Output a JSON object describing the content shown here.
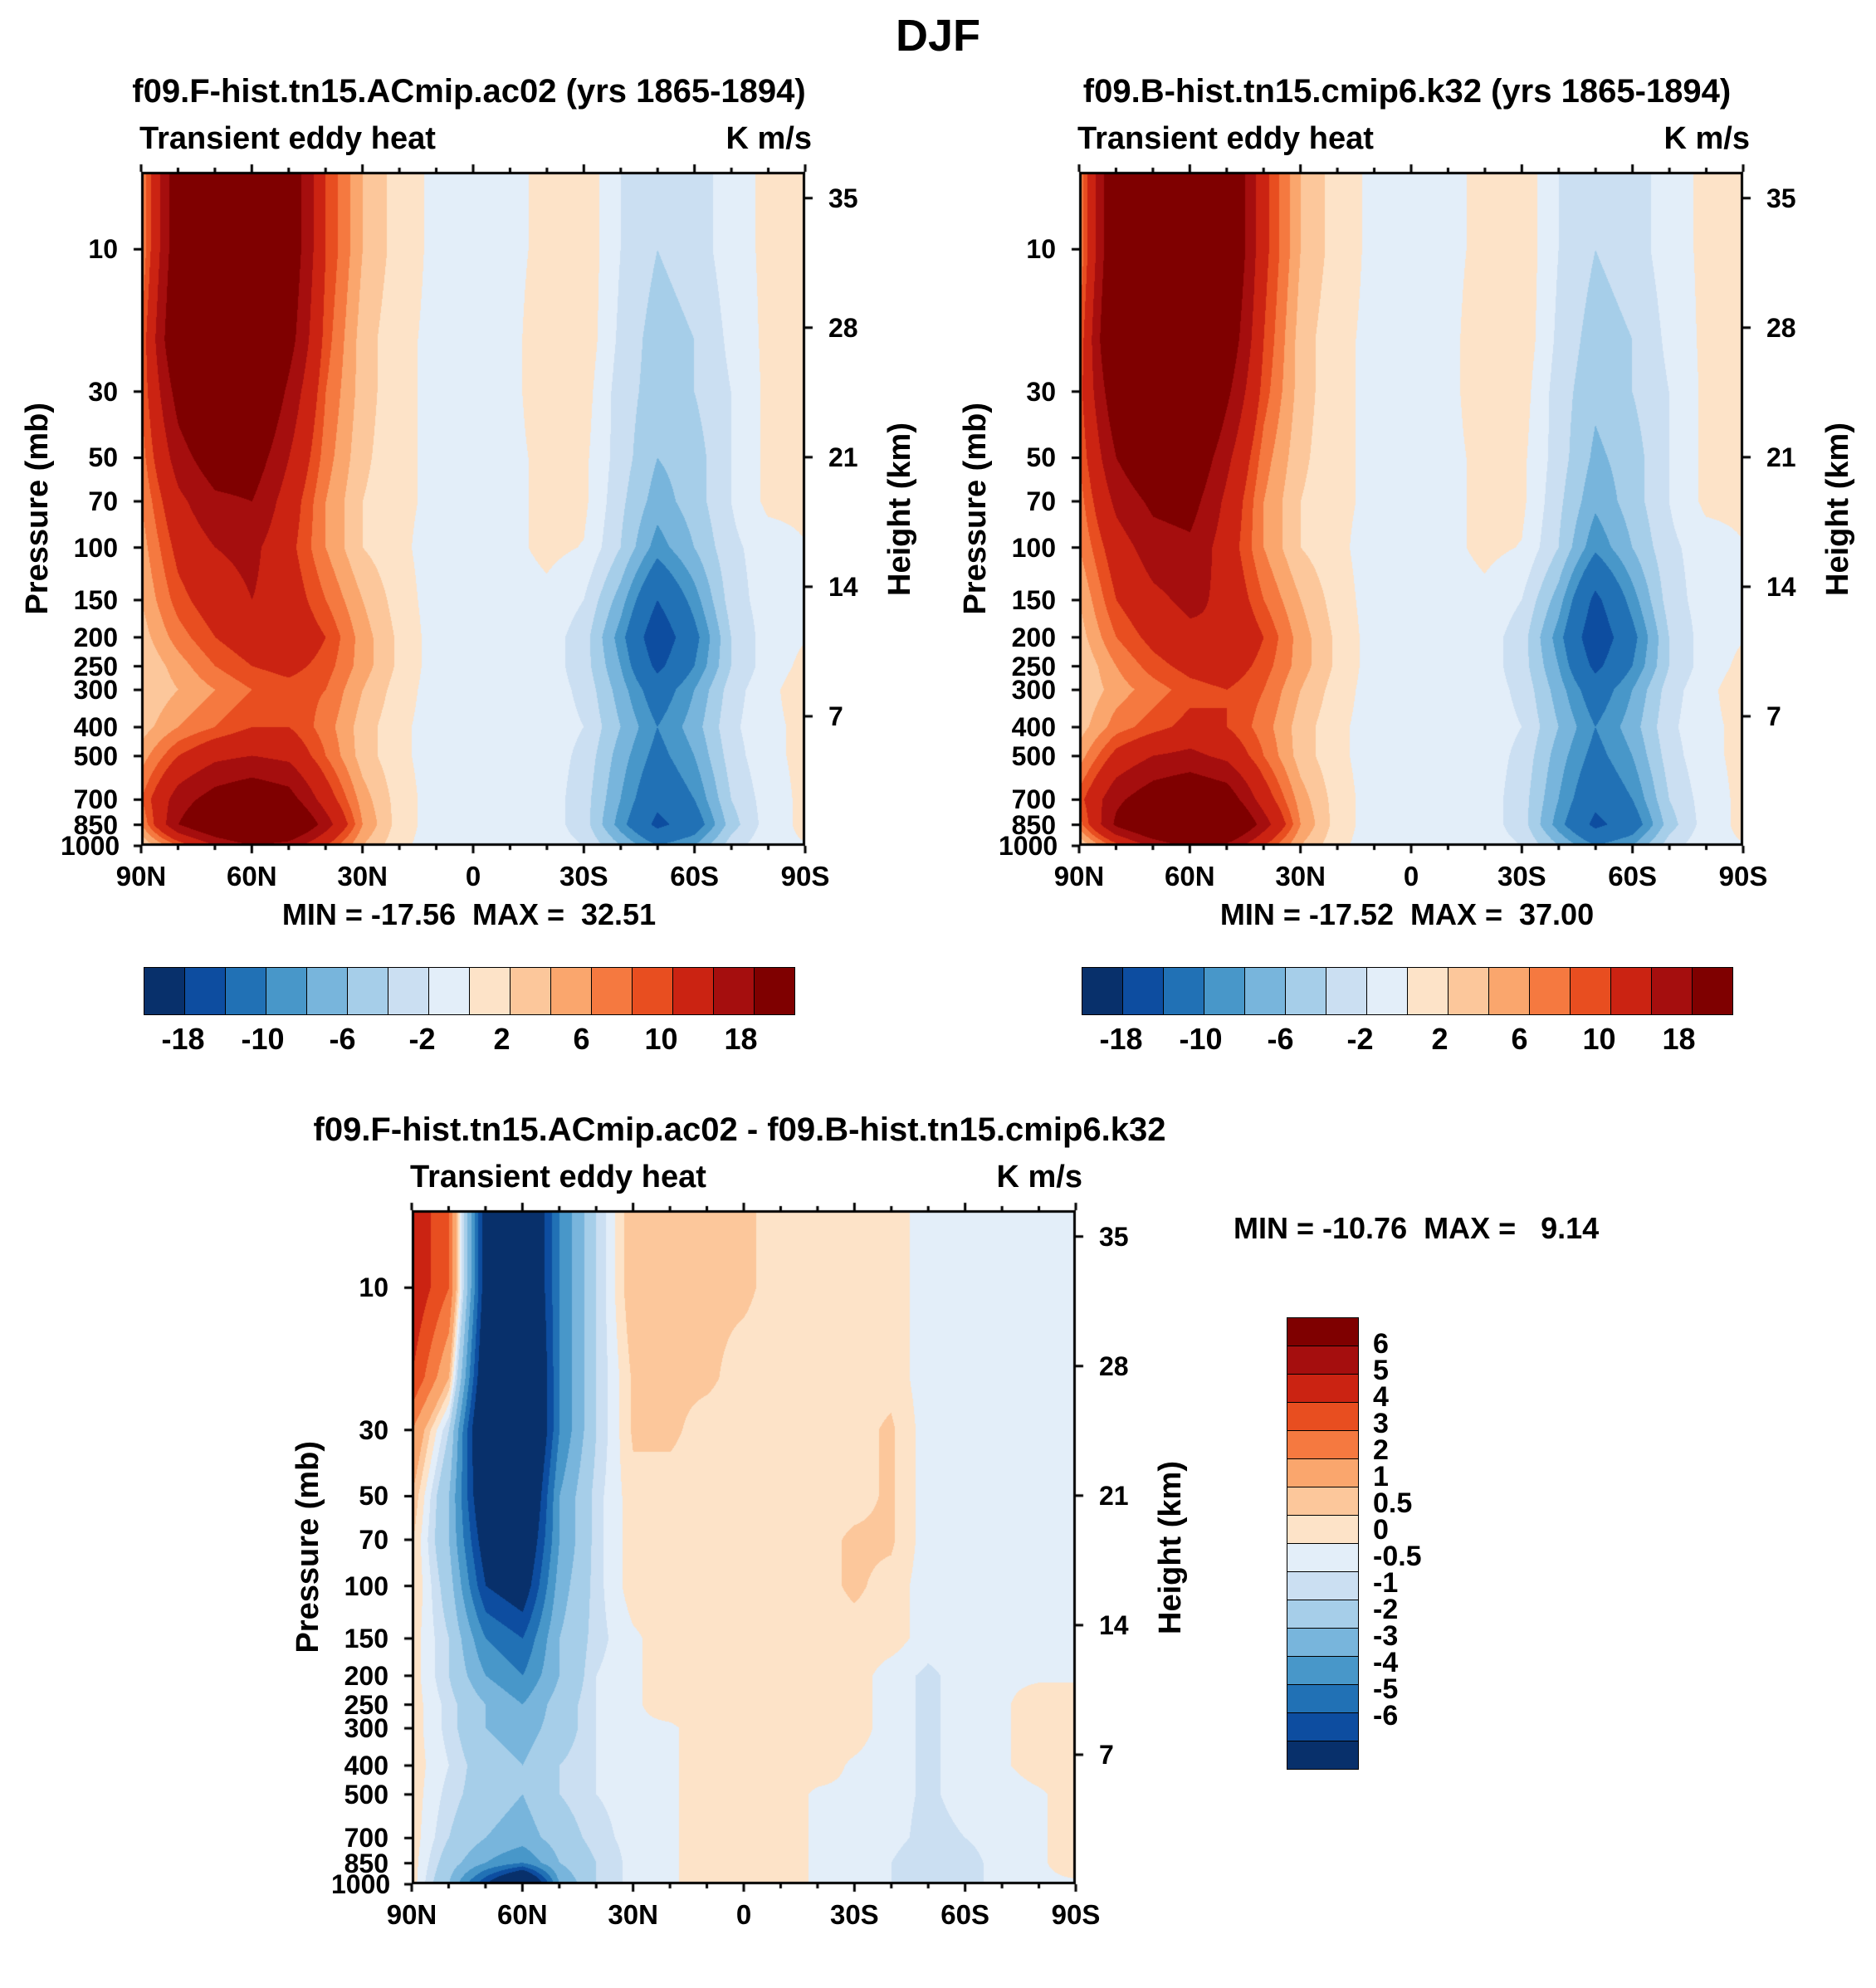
{
  "page": {
    "title": "DJF"
  },
  "axes": {
    "pressure_label": "Pressure (mb)",
    "height_label": "Height (km)",
    "pressure_ticks": [
      10,
      30,
      50,
      70,
      100,
      150,
      200,
      250,
      300,
      400,
      500,
      700,
      850,
      1000
    ],
    "height_ticks": [
      35,
      28,
      21,
      14,
      7
    ],
    "lat_tick_labels": [
      "90N",
      "60N",
      "30N",
      "0",
      "30S",
      "60S",
      "90S"
    ],
    "lat_tick_values": [
      90,
      60,
      30,
      0,
      -30,
      -60,
      -90
    ],
    "p_top": 5.5,
    "p_bottom": 1000
  },
  "palette": [
    "#08306b",
    "#0d4da0",
    "#2171b5",
    "#4897c9",
    "#78b5dc",
    "#a6cee9",
    "#cbdff2",
    "#e3eef9",
    "#fde3c8",
    "#fcc79b",
    "#faa66d",
    "#f57940",
    "#e84e20",
    "#cb2312",
    "#a50e0e",
    "#7f0000"
  ],
  "colorbar_main": {
    "labels": [
      "-18",
      "-10",
      "-6",
      "-2",
      "2",
      "6",
      "10",
      "18"
    ],
    "positions": [
      1,
      3,
      5,
      7,
      9,
      11,
      13,
      15
    ]
  },
  "colorbar_diff": {
    "labels": [
      "6",
      "5",
      "4",
      "3",
      "2",
      "1",
      "0.5",
      "0",
      "-0.5",
      "-1",
      "-2",
      "-3",
      "-4",
      "-5",
      "-6"
    ]
  },
  "chart_data": [
    {
      "type": "heatmap",
      "title": "f09.F-hist.tn15.ACmip.ac02 (yrs 1865-1894)",
      "field": "Transient eddy heat",
      "units": "K m/s",
      "min": -17.56,
      "max": 32.51,
      "minmax_label": "MIN = -17.56  MAX =  32.51",
      "levels": [
        -18,
        -14,
        -10,
        -8,
        -6,
        -4,
        -2,
        0,
        2,
        4,
        6,
        8,
        10,
        14,
        18
      ],
      "lats": [
        90,
        80,
        70,
        60,
        50,
        40,
        30,
        20,
        10,
        0,
        -10,
        -20,
        -30,
        -40,
        -50,
        -60,
        -70,
        -80,
        -90
      ],
      "pressures": [
        10,
        20,
        30,
        50,
        70,
        100,
        150,
        200,
        250,
        300,
        400,
        500,
        700,
        850,
        1000
      ],
      "values": [
        [
          6,
          22,
          30,
          32,
          22,
          10,
          4,
          1,
          -0.5,
          -1,
          -0.5,
          0.5,
          1.5,
          -2,
          -4,
          -3,
          -1,
          0.5,
          0.5
        ],
        [
          8,
          24,
          31,
          30,
          20,
          9,
          3,
          0.5,
          -0.5,
          -1,
          -0.5,
          1,
          1.5,
          -2.5,
          -5,
          -4,
          -1.5,
          0.5,
          0.5
        ],
        [
          8,
          20,
          26,
          26,
          17,
          8,
          3,
          0.5,
          -0.5,
          -1,
          -0.5,
          1,
          1,
          -3,
          -5,
          -4,
          -2,
          0.5,
          0.5
        ],
        [
          7,
          16,
          21,
          21,
          14,
          7,
          2.5,
          0.5,
          -0.5,
          -1,
          -0.5,
          0.5,
          0.5,
          -3,
          -6,
          -5,
          -2,
          0.5,
          0.5
        ],
        [
          6,
          13,
          17,
          18,
          12,
          6,
          2,
          0.5,
          -0.5,
          -1,
          -0.5,
          0.5,
          0.5,
          -3.5,
          -7,
          -5,
          -2,
          0.5,
          0.5
        ],
        [
          5,
          11,
          14,
          15,
          11,
          6,
          2,
          0.5,
          -1,
          -1,
          -0.5,
          0.5,
          -0.1,
          -4,
          -9,
          -6,
          -2.5,
          -1,
          -0.1
        ],
        [
          4,
          9,
          12,
          14,
          12,
          8,
          4,
          1,
          -1,
          -1,
          -1,
          -0.5,
          -2,
          -7,
          -14,
          -9,
          -3,
          -1,
          -0.1
        ],
        [
          3,
          7,
          10,
          12,
          13,
          10,
          5,
          1.5,
          -1,
          -1,
          -1,
          -1,
          -3,
          -9,
          -17,
          -11,
          -4,
          -1,
          -0.1
        ],
        [
          2,
          5,
          8,
          10,
          11,
          9,
          5,
          1.5,
          -1,
          -1,
          -1,
          -1,
          -3,
          -8,
          -15,
          -10,
          -4,
          -1,
          0.5
        ],
        [
          2,
          4,
          6,
          8,
          9,
          8,
          4,
          1,
          -1,
          -1,
          -1,
          -1,
          -2.5,
          -7,
          -12,
          -8,
          -3,
          -0.5,
          1
        ],
        [
          3,
          6,
          8,
          10,
          10,
          7,
          3,
          0.5,
          -1,
          -1,
          -1,
          -1,
          -2,
          -6,
          -10,
          -7,
          -2.5,
          -0.5,
          0.5
        ],
        [
          5,
          10,
          13,
          14,
          13,
          8,
          3,
          0.5,
          -1,
          -1.5,
          -1,
          -1,
          -2.5,
          -7,
          -11,
          -8,
          -3,
          -0.5,
          0.5
        ],
        [
          8,
          16,
          20,
          22,
          20,
          12,
          5,
          1,
          -1,
          -1.5,
          -1,
          -1,
          -3,
          -8,
          -13,
          -10,
          -4,
          -1,
          0.5
        ],
        [
          6,
          18,
          24,
          28,
          26,
          16,
          6,
          1,
          -1,
          -1.5,
          -1,
          -1,
          -3,
          -9,
          -15,
          -12,
          -5,
          -1,
          0.5
        ],
        [
          2,
          8,
          14,
          18,
          16,
          10,
          4,
          0.5,
          -1,
          -1,
          -1,
          -1,
          -2,
          -6,
          -10,
          -8,
          -3,
          -0.5,
          -0.1
        ]
      ]
    },
    {
      "type": "heatmap",
      "title": "f09.B-hist.tn15.cmip6.k32 (yrs 1865-1894)",
      "field": "Transient eddy heat",
      "units": "K m/s",
      "min": -17.52,
      "max": 37.0,
      "minmax_label": "MIN = -17.52  MAX =  37.00",
      "levels": [
        -18,
        -14,
        -10,
        -8,
        -6,
        -4,
        -2,
        0,
        2,
        4,
        6,
        8,
        10,
        14,
        18
      ],
      "lats": [
        90,
        80,
        70,
        60,
        50,
        40,
        30,
        20,
        10,
        0,
        -10,
        -20,
        -30,
        -40,
        -50,
        -60,
        -70,
        -80,
        -90
      ],
      "pressures": [
        10,
        20,
        30,
        50,
        70,
        100,
        150,
        200,
        250,
        300,
        400,
        500,
        700,
        850,
        1000
      ],
      "values": [
        [
          6,
          24,
          33,
          36,
          25,
          11,
          4,
          1,
          -0.5,
          -1,
          -0.5,
          0.5,
          1.5,
          -2,
          -4,
          -3,
          -1,
          0.5,
          0.5
        ],
        [
          8,
          26,
          35,
          34,
          22,
          10,
          3,
          0.5,
          -0.5,
          -1,
          -0.5,
          1,
          1.5,
          -2.5,
          -5,
          -4,
          -1.5,
          0.5,
          0.5
        ],
        [
          9,
          22,
          29,
          29,
          19,
          9,
          3,
          0.5,
          -0.5,
          -1,
          -0.5,
          1,
          1,
          -3,
          -5.5,
          -4,
          -2,
          0.5,
          0.5
        ],
        [
          8,
          18,
          23,
          23,
          15,
          7,
          2.5,
          0.5,
          -0.5,
          -1,
          -0.5,
          0.5,
          0.5,
          -3,
          -6.5,
          -5,
          -2,
          0.5,
          0.5
        ],
        [
          7,
          15,
          19,
          20,
          13,
          6,
          2,
          0.5,
          -0.5,
          -1,
          -0.5,
          0.5,
          0.5,
          -3.5,
          -7.5,
          -5,
          -2,
          0.5,
          0.5
        ],
        [
          6,
          12,
          16,
          17,
          12,
          6,
          2,
          0.5,
          -1,
          -1,
          -0.5,
          0.5,
          -0.1,
          -4,
          -9.5,
          -6,
          -2.5,
          -1,
          -0.1
        ],
        [
          4,
          10,
          13,
          15,
          13,
          8,
          4,
          1,
          -1,
          -1,
          -1,
          -0.5,
          -2,
          -7,
          -15,
          -9,
          -3,
          -1,
          -0.1
        ],
        [
          3,
          8,
          11,
          13,
          14,
          10,
          5,
          1.5,
          -1,
          -1,
          -1,
          -1,
          -3,
          -9,
          -17,
          -11,
          -4,
          -1,
          -0.1
        ],
        [
          2,
          6,
          9,
          11,
          12,
          9,
          5,
          1.5,
          -1,
          -1,
          -1,
          -1,
          -3,
          -8,
          -15,
          -10,
          -4,
          -1,
          0.5
        ],
        [
          2,
          5,
          7,
          9,
          10,
          8,
          4,
          1,
          -1,
          -1,
          -1,
          -1,
          -2.5,
          -7,
          -12,
          -8,
          -3,
          -0.5,
          1
        ],
        [
          3,
          7,
          9,
          11,
          10,
          7,
          3,
          0.5,
          -1,
          -1,
          -1,
          -1,
          -2,
          -6,
          -10,
          -7,
          -2.5,
          -0.5,
          0.5
        ],
        [
          5,
          11,
          14,
          15,
          13,
          8,
          3,
          0.5,
          -1,
          -1.5,
          -1,
          -1,
          -2.5,
          -7,
          -11,
          -8,
          -3,
          -0.5,
          0.5
        ],
        [
          9,
          17,
          21,
          23,
          21,
          12,
          5,
          1,
          -1,
          -1.5,
          -1,
          -1,
          -3,
          -8,
          -13,
          -10,
          -4,
          -1,
          0.5
        ],
        [
          7,
          19,
          25,
          29,
          27,
          16,
          6,
          1,
          -1,
          -1.5,
          -1,
          -1,
          -3,
          -9,
          -15,
          -12,
          -5,
          -1,
          0.5
        ],
        [
          2,
          9,
          15,
          19,
          17,
          10,
          4,
          0.5,
          -1,
          -1,
          -1,
          -1,
          -2,
          -6,
          -10,
          -8,
          -3,
          -0.5,
          -0.1
        ]
      ]
    },
    {
      "type": "heatmap",
      "title": "f09.F-hist.tn15.ACmip.ac02 - f09.B-hist.tn15.cmip6.k32",
      "field": "Transient eddy heat",
      "units": "K m/s",
      "min": -10.76,
      "max": 9.14,
      "minmax_label": "MIN = -10.76  MAX =   9.14",
      "levels": [
        -6,
        -5,
        -4,
        -3,
        -2,
        -1,
        -0.5,
        0,
        0.5,
        1,
        2,
        3,
        4,
        5,
        6
      ],
      "lats": [
        90,
        80,
        70,
        60,
        50,
        40,
        30,
        20,
        10,
        0,
        -10,
        -20,
        -30,
        -40,
        -50,
        -60,
        -70,
        -80,
        -90
      ],
      "pressures": [
        10,
        20,
        30,
        50,
        70,
        100,
        150,
        200,
        250,
        300,
        400,
        500,
        700,
        850,
        1000
      ],
      "values": [
        [
          5,
          3,
          -7,
          -9,
          -4,
          -1,
          1,
          1,
          0.6,
          0.6,
          0.3,
          0.3,
          0.3,
          0.3,
          -0.3,
          -0.3,
          -0.3,
          -0.1,
          -0.1
        ],
        [
          4,
          1,
          -8,
          -10,
          -4,
          -1,
          0.6,
          0.6,
          0.6,
          0.3,
          0.3,
          0.3,
          0.3,
          0.3,
          -0.3,
          -0.3,
          -0.3,
          -0.1,
          -0.1
        ],
        [
          2,
          -1,
          -9,
          -10,
          -4,
          -1,
          0.6,
          0.6,
          0.3,
          0.3,
          0.3,
          0.3,
          0.3,
          0.6,
          -0.3,
          -0.3,
          -0.3,
          -0.1,
          -0.1
        ],
        [
          1,
          -2,
          -8,
          -9,
          -3,
          -0.7,
          0.3,
          0.3,
          0.3,
          0.3,
          0.3,
          0.3,
          0.3,
          0.6,
          -0.3,
          -0.3,
          -0.1,
          -0.1,
          -0.1
        ],
        [
          0.6,
          -2,
          -7,
          -8,
          -3,
          -0.7,
          0.3,
          0.3,
          0.3,
          0.3,
          0.3,
          0.3,
          0.6,
          0.6,
          -0.3,
          -0.3,
          -0.1,
          -0.1,
          -0.1
        ],
        [
          0.6,
          -1.5,
          -6,
          -7,
          -2.5,
          -0.7,
          0.3,
          0.3,
          0.3,
          0.3,
          0.3,
          0.3,
          0.6,
          0.3,
          -0.3,
          -0.3,
          -0.1,
          -0.1,
          -0.1
        ],
        [
          0.3,
          -1,
          -4,
          -5,
          -2,
          -0.7,
          -0.1,
          0.3,
          0.3,
          0.3,
          0.3,
          0.3,
          0.3,
          0.3,
          -0.3,
          -0.3,
          -0.1,
          -0.1,
          -0.1
        ],
        [
          0.3,
          -1,
          -3,
          -4,
          -2,
          -0.5,
          -0.1,
          0.3,
          0.3,
          0.3,
          0.3,
          0.3,
          0.3,
          -0.3,
          -0.6,
          -0.3,
          -0.1,
          -0.1,
          -0.1
        ],
        [
          0.3,
          -0.7,
          -2,
          -3,
          -1.5,
          -0.5,
          -0.1,
          0.3,
          0.3,
          0.3,
          0.3,
          0.3,
          0.3,
          -0.3,
          -0.6,
          -0.3,
          -0.1,
          0.3,
          0.3
        ],
        [
          0.3,
          -0.7,
          -2,
          -2.5,
          -1.5,
          -0.5,
          -0.1,
          -0.1,
          0.3,
          0.3,
          0.3,
          0.3,
          0.3,
          -0.3,
          -0.6,
          -0.3,
          -0.1,
          0.3,
          0.3
        ],
        [
          0.3,
          -0.5,
          -1.5,
          -2,
          -1,
          -0.5,
          -0.1,
          -0.1,
          0.3,
          0.3,
          0.3,
          0.3,
          -0.1,
          -0.3,
          -0.6,
          -0.3,
          -0.1,
          0.3,
          0.3
        ],
        [
          0.3,
          -0.7,
          -1.5,
          -2,
          -1,
          -0.5,
          -0.3,
          -0.1,
          0.3,
          0.3,
          0.3,
          -0.1,
          -0.1,
          -0.3,
          -0.6,
          -0.3,
          -0.3,
          -0.1,
          0.3
        ],
        [
          0.3,
          -1,
          -2,
          -2.5,
          -1.5,
          -0.7,
          -0.3,
          -0.1,
          0.3,
          0.3,
          0.3,
          -0.1,
          -0.1,
          -0.3,
          -0.7,
          -0.5,
          -0.3,
          -0.1,
          0.3
        ],
        [
          0.3,
          -1.5,
          -3,
          -4,
          -2,
          -1,
          -0.3,
          -0.1,
          0.3,
          0.3,
          0.3,
          -0.1,
          -0.3,
          -0.5,
          -1,
          -0.7,
          -0.3,
          -0.1,
          0.3
        ],
        [
          0.3,
          -2,
          -6,
          -10,
          -3,
          -1,
          -0.3,
          -0.1,
          0.3,
          0.3,
          0.3,
          -0.1,
          -0.3,
          -0.5,
          -1,
          -0.7,
          -0.3,
          -0.1,
          -0.1
        ]
      ]
    }
  ]
}
